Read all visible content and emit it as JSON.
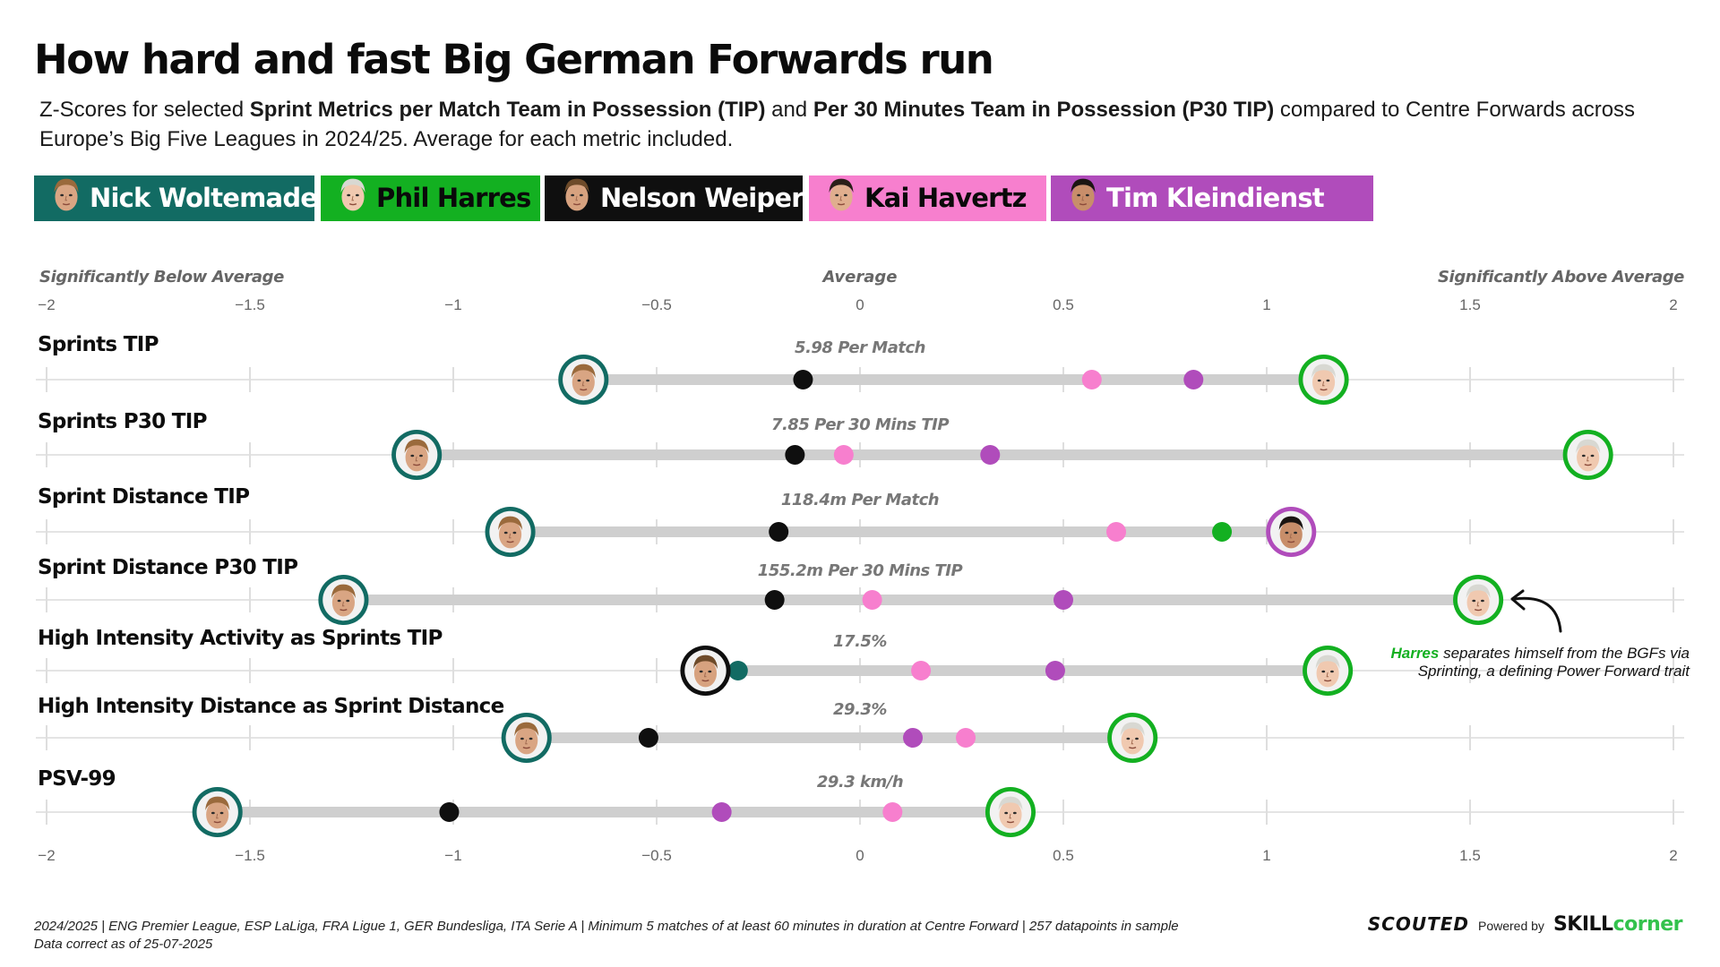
{
  "header": {
    "title": "How hard and fast Big German Forwards run",
    "subtitle_parts": [
      {
        "text": "Z-Scores for selected ",
        "bold": false
      },
      {
        "text": "Sprint Metrics per Match Team in Possession (TIP)",
        "bold": true
      },
      {
        "text": " and ",
        "bold": false
      },
      {
        "text": "Per 30 Minutes Team in Possession (P30 TIP)",
        "bold": true
      },
      {
        "text": " compared to Centre Forwards across Europe’s Big Five Leagues in 2024/25. Average for each metric included.",
        "bold": false
      }
    ]
  },
  "legend": [
    {
      "key": "woltemade",
      "name": "Nick Woltemade",
      "color": "#126b63",
      "text_color": "#ffffff"
    },
    {
      "key": "harres",
      "name": "Phil Harres",
      "color": "#13b021",
      "text_color": "#0a0a0a"
    },
    {
      "key": "weiper",
      "name": "Nelson Weiper",
      "color": "#0f0f0f",
      "text_color": "#ffffff"
    },
    {
      "key": "havertz",
      "name": "Kai Havertz",
      "color": "#f77fce",
      "text_color": "#0a0a0a"
    },
    {
      "key": "kleindienst",
      "name": "Tim Kleindienst",
      "color": "#b04cbb",
      "text_color": "#ffffff"
    }
  ],
  "chart_data": {
    "type": "scatter",
    "subtype": "dot-plot z-scores",
    "xlim": [
      -2,
      2
    ],
    "x_ticks": [
      "−2",
      "−1.5",
      "−1",
      "−0.5",
      "0",
      "0.5",
      "1",
      "1.5",
      "2"
    ],
    "x_tick_values": [
      -2,
      -1.5,
      -1,
      -0.5,
      0,
      0.5,
      1,
      1.5,
      2
    ],
    "scale_labels": {
      "left": "Significantly Below Average",
      "center": "Average",
      "right": "Significantly Above Average"
    },
    "grid": true,
    "series_names": [
      "Nick Woltemade",
      "Phil Harres",
      "Nelson Weiper",
      "Kai Havertz",
      "Tim Kleindienst"
    ],
    "metrics": [
      {
        "label": "Sprints TIP",
        "average": "5.98 Per Match",
        "values": {
          "woltemade": -0.68,
          "harres": 1.14,
          "weiper": -0.14,
          "havertz": 0.57,
          "kleindienst": 0.82
        },
        "photo": [
          "woltemade",
          "harres"
        ]
      },
      {
        "label": "Sprints P30 TIP",
        "average": "7.85 Per 30 Mins TIP",
        "values": {
          "woltemade": -1.09,
          "harres": 1.79,
          "weiper": -0.16,
          "havertz": -0.04,
          "kleindienst": 0.32
        },
        "photo": [
          "woltemade",
          "harres"
        ]
      },
      {
        "label": "Sprint Distance TIP",
        "average": "118.4m Per Match",
        "values": {
          "woltemade": -0.86,
          "harres": 0.89,
          "weiper": -0.2,
          "havertz": 0.63,
          "kleindienst": 1.06
        },
        "photo": [
          "woltemade",
          "kleindienst"
        ]
      },
      {
        "label": "Sprint Distance P30 TIP",
        "average": "155.2m Per 30 Mins TIP",
        "values": {
          "woltemade": -1.27,
          "harres": 1.52,
          "weiper": -0.21,
          "havertz": 0.03,
          "kleindienst": 0.5
        },
        "photo": [
          "woltemade",
          "harres"
        ]
      },
      {
        "label": "High Intensity Activity as Sprints TIP",
        "average": "17.5%",
        "values": {
          "woltemade": -0.3,
          "harres": 1.15,
          "weiper": -0.38,
          "havertz": 0.15,
          "kleindienst": 0.48
        },
        "photo": [
          "weiper",
          "harres"
        ]
      },
      {
        "label": "High Intensity Distance as Sprint Distance",
        "average": "29.3%",
        "values": {
          "woltemade": -0.82,
          "harres": 0.67,
          "weiper": -0.52,
          "havertz": 0.26,
          "kleindienst": 0.13
        },
        "photo": [
          "woltemade",
          "harres"
        ]
      },
      {
        "label": "PSV-99",
        "average": "29.3 km/h",
        "values": {
          "woltemade": -1.58,
          "harres": 0.37,
          "weiper": -1.01,
          "havertz": 0.08,
          "kleindienst": -0.34
        },
        "photo": [
          "woltemade",
          "harres"
        ]
      }
    ],
    "annotation": {
      "highlight": "Harres",
      "text_line1": " separates himself from the BGFs via",
      "text_line2": "Sprinting, a defining Power Forward trait"
    }
  },
  "footer": {
    "line1": "2024/2025 | ENG Premier League, ESP LaLiga, FRA Ligue 1, GER Bundesliga, ITA Serie A | Minimum 5 matches of at least 60 minutes in duration at Centre Forward | 257 datapoints in sample",
    "line2": "Data correct as of 25-07-2025"
  },
  "branding": {
    "scouted": "SCOUTED",
    "powered_by": "Powered by",
    "skill": "SKILL",
    "corner": "corner"
  }
}
